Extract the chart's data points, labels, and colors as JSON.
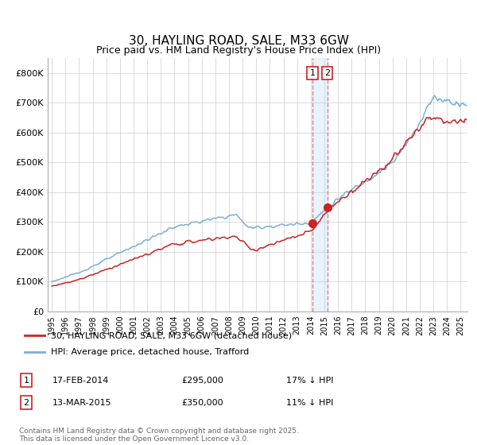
{
  "title": "30, HAYLING ROAD, SALE, M33 6GW",
  "subtitle": "Price paid vs. HM Land Registry's House Price Index (HPI)",
  "ylim": [
    0,
    850000
  ],
  "yticks": [
    0,
    100000,
    200000,
    300000,
    400000,
    500000,
    600000,
    700000,
    800000
  ],
  "ytick_labels": [
    "£0",
    "£100K",
    "£200K",
    "£300K",
    "£400K",
    "£500K",
    "£600K",
    "£700K",
    "£800K"
  ],
  "hpi_color": "#7bafd4",
  "price_color": "#cc2222",
  "marker_color": "#cc2222",
  "vline_color": "#e08080",
  "vfill_color": "#ddeeff",
  "background_color": "#ffffff",
  "grid_color": "#cccccc",
  "transaction1_date": "17-FEB-2014",
  "transaction1_price": 295000,
  "transaction1_pct": "17% ↓ HPI",
  "transaction2_date": "13-MAR-2015",
  "transaction2_price": 350000,
  "transaction2_pct": "11% ↓ HPI",
  "footer": "Contains HM Land Registry data © Crown copyright and database right 2025.\nThis data is licensed under the Open Government Licence v3.0.",
  "legend1": "30, HAYLING ROAD, SALE, M33 6GW (detached house)",
  "legend2": "HPI: Average price, detached house, Trafford",
  "xlim_start": 1994.7,
  "xlim_end": 2025.5,
  "t1_x": 2014.12,
  "t2_x": 2015.21
}
